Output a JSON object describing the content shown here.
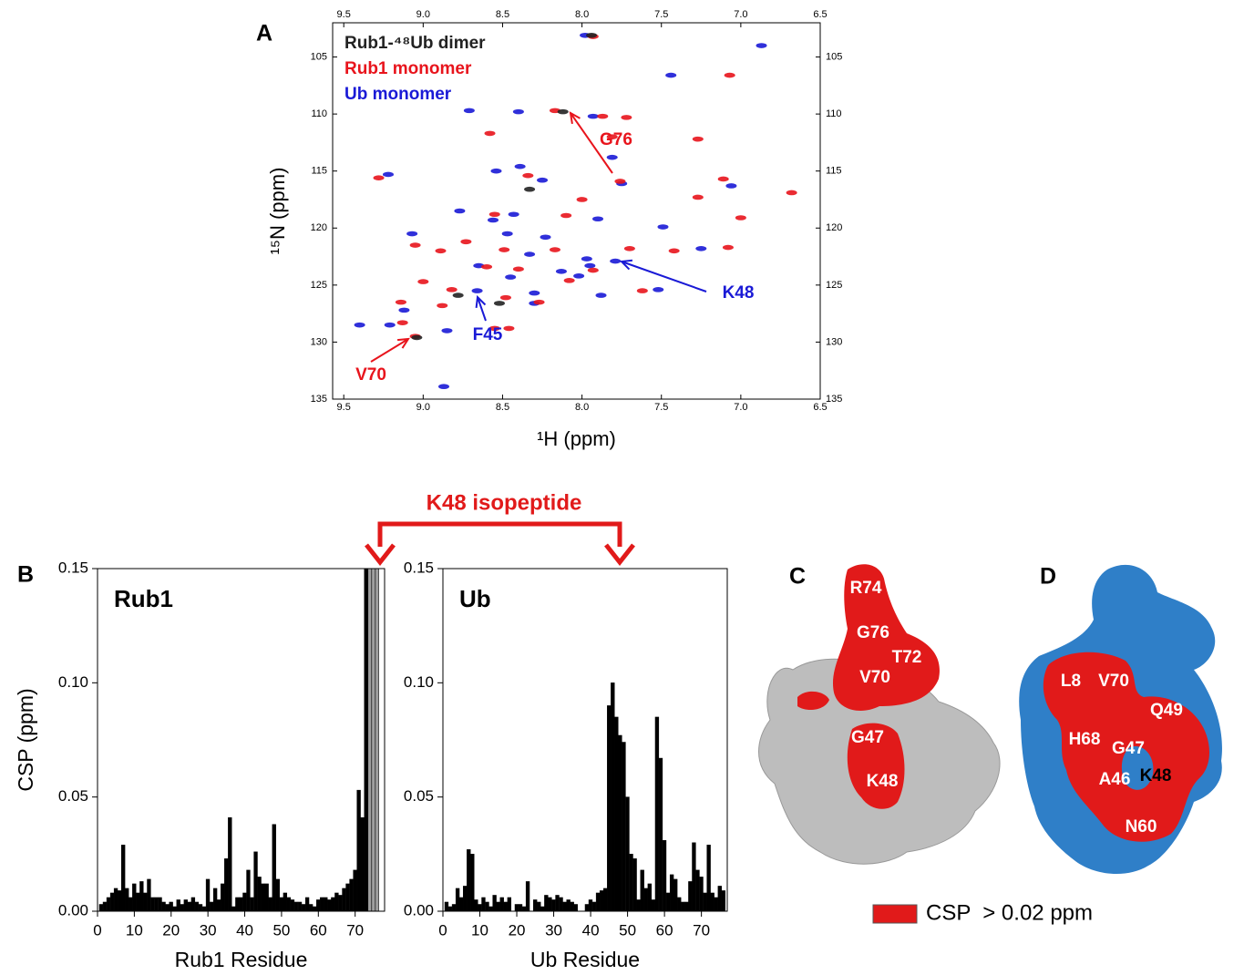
{
  "chart_data": [
    {
      "type": "scatter",
      "panel_label": "A",
      "x_label": "¹H (ppm)",
      "y_label": "¹⁵N (ppm)",
      "xlim": [
        9.57,
        6.5
      ],
      "ylim": [
        102,
        135
      ],
      "xticks": [
        9.5,
        {
          "value": 9.0,
          "label": "9.0"
        },
        8.5,
        {
          "value": 8.0,
          "label": "8.0"
        },
        7.5,
        {
          "value": 7.0,
          "label": "7.0"
        },
        6.5
      ],
      "yticks": [
        105,
        110,
        115,
        120,
        125,
        130,
        135
      ],
      "series": [
        {
          "name": "Rub1-⁴⁸Ub dimer",
          "color": "#222222",
          "x": [
            7.94,
            8.52,
            8.78,
            9.04,
            8.12,
            8.33
          ],
          "y": [
            103.1,
            126.6,
            125.9,
            129.6,
            109.8,
            116.6
          ]
        },
        {
          "name": "Rub1 monomer",
          "color": "#e8141c",
          "x": [
            7.93,
            7.07,
            8.17,
            7.87,
            7.72,
            8.58,
            7.81,
            7.27,
            7.11,
            9.28,
            8.34,
            7.76,
            8.0,
            6.68,
            7.27,
            8.55,
            8.1,
            7.0,
            9.05,
            8.73,
            8.49,
            8.89,
            8.17,
            7.7,
            7.42,
            7.08,
            8.6,
            8.4,
            8.08,
            7.93,
            9.0,
            8.82,
            8.48,
            7.62,
            8.27,
            9.14,
            8.88,
            9.13,
            9.05,
            8.55,
            8.46
          ],
          "y": [
            103.2,
            106.6,
            109.7,
            110.2,
            110.3,
            111.7,
            112.0,
            112.2,
            115.7,
            115.6,
            115.4,
            115.9,
            117.5,
            116.9,
            117.3,
            118.8,
            118.9,
            119.1,
            121.5,
            121.2,
            121.9,
            122.0,
            121.9,
            121.8,
            122.0,
            121.7,
            123.4,
            123.6,
            124.6,
            123.7,
            124.7,
            125.4,
            126.1,
            125.5,
            126.5,
            126.5,
            126.8,
            128.3,
            129.5,
            128.8,
            128.8
          ]
        },
        {
          "name": "Ub monomer",
          "color": "#1a1ad6",
          "x": [
            7.98,
            6.87,
            7.44,
            8.71,
            8.4,
            7.93,
            7.81,
            8.54,
            9.22,
            8.39,
            7.06,
            7.75,
            8.25,
            8.77,
            8.43,
            8.56,
            7.9,
            8.47,
            8.23,
            7.49,
            9.07,
            8.33,
            7.97,
            7.79,
            8.65,
            8.13,
            7.95,
            8.45,
            8.66,
            8.3,
            7.52,
            7.88,
            8.3,
            9.12,
            9.4,
            9.21,
            8.85,
            8.87,
            8.02,
            7.25
          ],
          "y": [
            103.1,
            104.0,
            106.6,
            109.7,
            109.8,
            110.2,
            113.8,
            115.0,
            115.3,
            114.6,
            116.3,
            116.1,
            115.8,
            118.5,
            118.8,
            119.3,
            119.2,
            120.5,
            120.8,
            119.9,
            120.5,
            122.3,
            122.7,
            122.9,
            123.3,
            123.8,
            123.3,
            124.3,
            125.5,
            125.7,
            125.4,
            125.9,
            126.6,
            127.2,
            128.5,
            128.5,
            129.0,
            133.9,
            124.2,
            121.8
          ]
        }
      ],
      "annotations": [
        {
          "text": "G76",
          "color": "#e8141c"
        },
        {
          "text": "K48",
          "color": "#1a1ad6"
        },
        {
          "text": "F45",
          "color": "#1a1ad6"
        },
        {
          "text": "V70",
          "color": "#e8141c"
        }
      ]
    },
    {
      "type": "bar",
      "panel_label": "B",
      "title": "Rub1",
      "x_label": "Rub1 Residue",
      "y_label": "CSP (ppm)",
      "xlim": [
        0,
        78
      ],
      "ylim": [
        0,
        0.15
      ],
      "xticks": [
        0,
        10,
        20,
        30,
        40,
        50,
        60,
        70
      ],
      "yticks": [
        {
          "value": 0,
          "label": "0.00"
        },
        {
          "value": 0.05,
          "label": "0.05"
        },
        {
          "value": 0.1,
          "label": "0.10"
        },
        {
          "value": 0.15,
          "label": "0.15"
        }
      ],
      "x": [
        1,
        2,
        3,
        4,
        5,
        6,
        7,
        8,
        9,
        10,
        11,
        12,
        13,
        14,
        15,
        16,
        17,
        18,
        19,
        20,
        21,
        22,
        23,
        24,
        25,
        26,
        27,
        28,
        29,
        30,
        31,
        32,
        33,
        34,
        35,
        36,
        37,
        38,
        39,
        40,
        41,
        42,
        43,
        44,
        45,
        46,
        47,
        48,
        49,
        50,
        51,
        52,
        53,
        54,
        55,
        56,
        57,
        58,
        59,
        60,
        61,
        62,
        63,
        64,
        65,
        66,
        67,
        68,
        69,
        70,
        71,
        72,
        73,
        74,
        75,
        76
      ],
      "series": [
        {
          "color": "#000000",
          "values": [
            0.003,
            0.004,
            0.006,
            0.008,
            0.01,
            0.009,
            0.029,
            0.01,
            0.006,
            0.012,
            0.008,
            0.013,
            0.008,
            0.014,
            0.006,
            0.006,
            0.006,
            0.004,
            0.003,
            0.004,
            0.002,
            0.005,
            0.003,
            0.005,
            0.004,
            0.006,
            0.004,
            0.003,
            0.002,
            0.014,
            0.004,
            0.01,
            0.005,
            0.012,
            0.023,
            0.041,
            0.002,
            0.006,
            0.006,
            0.008,
            0.018,
            0.006,
            0.026,
            0.015,
            0.012,
            0.012,
            0.006,
            0.038,
            0.014,
            0.006,
            0.008,
            0.006,
            0.005,
            0.004,
            0.004,
            0.003,
            0.006,
            0.003,
            0.002,
            0.005,
            0.006,
            0.006,
            0.005,
            0.006,
            0.008,
            0.007,
            0.01,
            0.012,
            0.014,
            0.018,
            0.053,
            0.041,
            0.15,
            null,
            null,
            null
          ]
        },
        {
          "color": "#a0a0a0",
          "values": [
            null,
            null,
            null,
            null,
            null,
            null,
            null,
            null,
            null,
            null,
            null,
            null,
            null,
            null,
            null,
            null,
            null,
            null,
            null,
            null,
            null,
            null,
            null,
            null,
            null,
            null,
            null,
            null,
            null,
            null,
            null,
            null,
            null,
            null,
            null,
            null,
            null,
            null,
            null,
            null,
            null,
            null,
            null,
            null,
            null,
            null,
            null,
            null,
            null,
            null,
            null,
            null,
            null,
            null,
            null,
            null,
            null,
            null,
            null,
            null,
            null,
            null,
            null,
            null,
            null,
            null,
            null,
            null,
            null,
            null,
            null,
            null,
            null,
            0.15,
            0.15,
            0.15
          ]
        }
      ]
    },
    {
      "type": "bar",
      "title": "Ub",
      "x_label": "Ub Residue",
      "xlim": [
        0,
        77
      ],
      "ylim": [
        0,
        0.15
      ],
      "xticks": [
        0,
        10,
        20,
        30,
        40,
        50,
        60,
        70
      ],
      "yticks": [
        {
          "value": 0,
          "label": "0.00"
        },
        {
          "value": 0.05,
          "label": "0.05"
        },
        {
          "value": 0.1,
          "label": "0.10"
        },
        {
          "value": 0.15,
          "label": "0.15"
        }
      ],
      "x": [
        1,
        2,
        3,
        4,
        5,
        6,
        7,
        8,
        9,
        10,
        11,
        12,
        13,
        14,
        15,
        16,
        17,
        18,
        19,
        20,
        21,
        22,
        23,
        24,
        25,
        26,
        27,
        28,
        29,
        30,
        31,
        32,
        33,
        34,
        35,
        36,
        37,
        38,
        39,
        40,
        41,
        42,
        43,
        44,
        45,
        46,
        47,
        48,
        49,
        50,
        51,
        52,
        53,
        54,
        55,
        56,
        57,
        58,
        59,
        60,
        61,
        62,
        63,
        64,
        65,
        66,
        67,
        68,
        69,
        70,
        71,
        72,
        73,
        74,
        75,
        76
      ],
      "series": [
        {
          "color": "#000000",
          "values": [
            0.004,
            0.002,
            0.003,
            0.01,
            0.006,
            0.011,
            0.027,
            0.025,
            0.005,
            0.003,
            0.006,
            0.004,
            0.002,
            0.007,
            0.004,
            0.006,
            0.004,
            0.006,
            null,
            0.003,
            0.003,
            0.002,
            0.013,
            null,
            0.005,
            0.004,
            0.002,
            0.007,
            0.006,
            0.005,
            0.007,
            0.006,
            0.004,
            0.005,
            0.004,
            0.003,
            null,
            null,
            0.003,
            0.005,
            0.004,
            0.008,
            0.009,
            0.01,
            0.09,
            0.1,
            0.085,
            0.077,
            0.074,
            0.05,
            0.025,
            0.023,
            0.005,
            0.018,
            0.01,
            0.012,
            0.005,
            0.085,
            0.067,
            0.031,
            0.008,
            0.016,
            0.014,
            0.006,
            0.004,
            0.004,
            0.013,
            0.03,
            0.018,
            0.015,
            0.008,
            0.029,
            0.008,
            0.006,
            0.011,
            0.009
          ]
        }
      ]
    }
  ],
  "linkage_label": "K48 isopeptide",
  "panels": [
    {
      "label": "C",
      "residue_labels": [
        "R74",
        "G76",
        "T72",
        "V70",
        "G47",
        "K48"
      ]
    },
    {
      "label": "D",
      "residue_labels": [
        "L8",
        "V70",
        "Q49",
        "H68",
        "G47",
        "A46",
        "K48",
        "N60"
      ]
    }
  ],
  "legend": {
    "text": "CSP  > 0.02 ppm"
  }
}
